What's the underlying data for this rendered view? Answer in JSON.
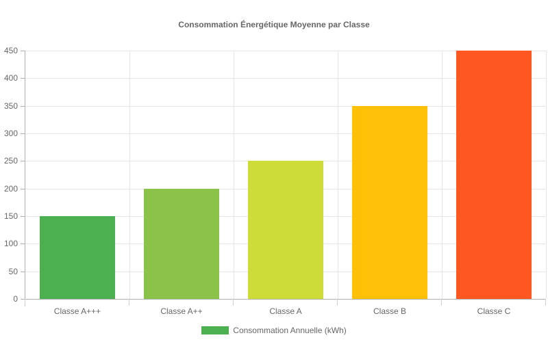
{
  "chart_data": {
    "type": "bar",
    "title": "Consommation Énergétique Moyenne par Classe",
    "categories": [
      "Classe A+++",
      "Classe A++",
      "Classe A",
      "Classe B",
      "Classe C"
    ],
    "series": [
      {
        "name": "Consommation Annuelle (kWh)",
        "values": [
          150,
          200,
          250,
          350,
          450
        ],
        "colors": [
          "#4caf50",
          "#8bc34a",
          "#cddc39",
          "#ffc107",
          "#ff5722"
        ]
      }
    ],
    "xlabel": "",
    "ylabel": "",
    "ylim": [
      0,
      450
    ],
    "yticks": [
      0,
      50,
      100,
      150,
      200,
      250,
      300,
      350,
      400,
      450
    ],
    "grid": true,
    "legend_position": "bottom"
  },
  "legend": {
    "label": "Consommation Annuelle (kWh)",
    "color": "#4caf50"
  }
}
